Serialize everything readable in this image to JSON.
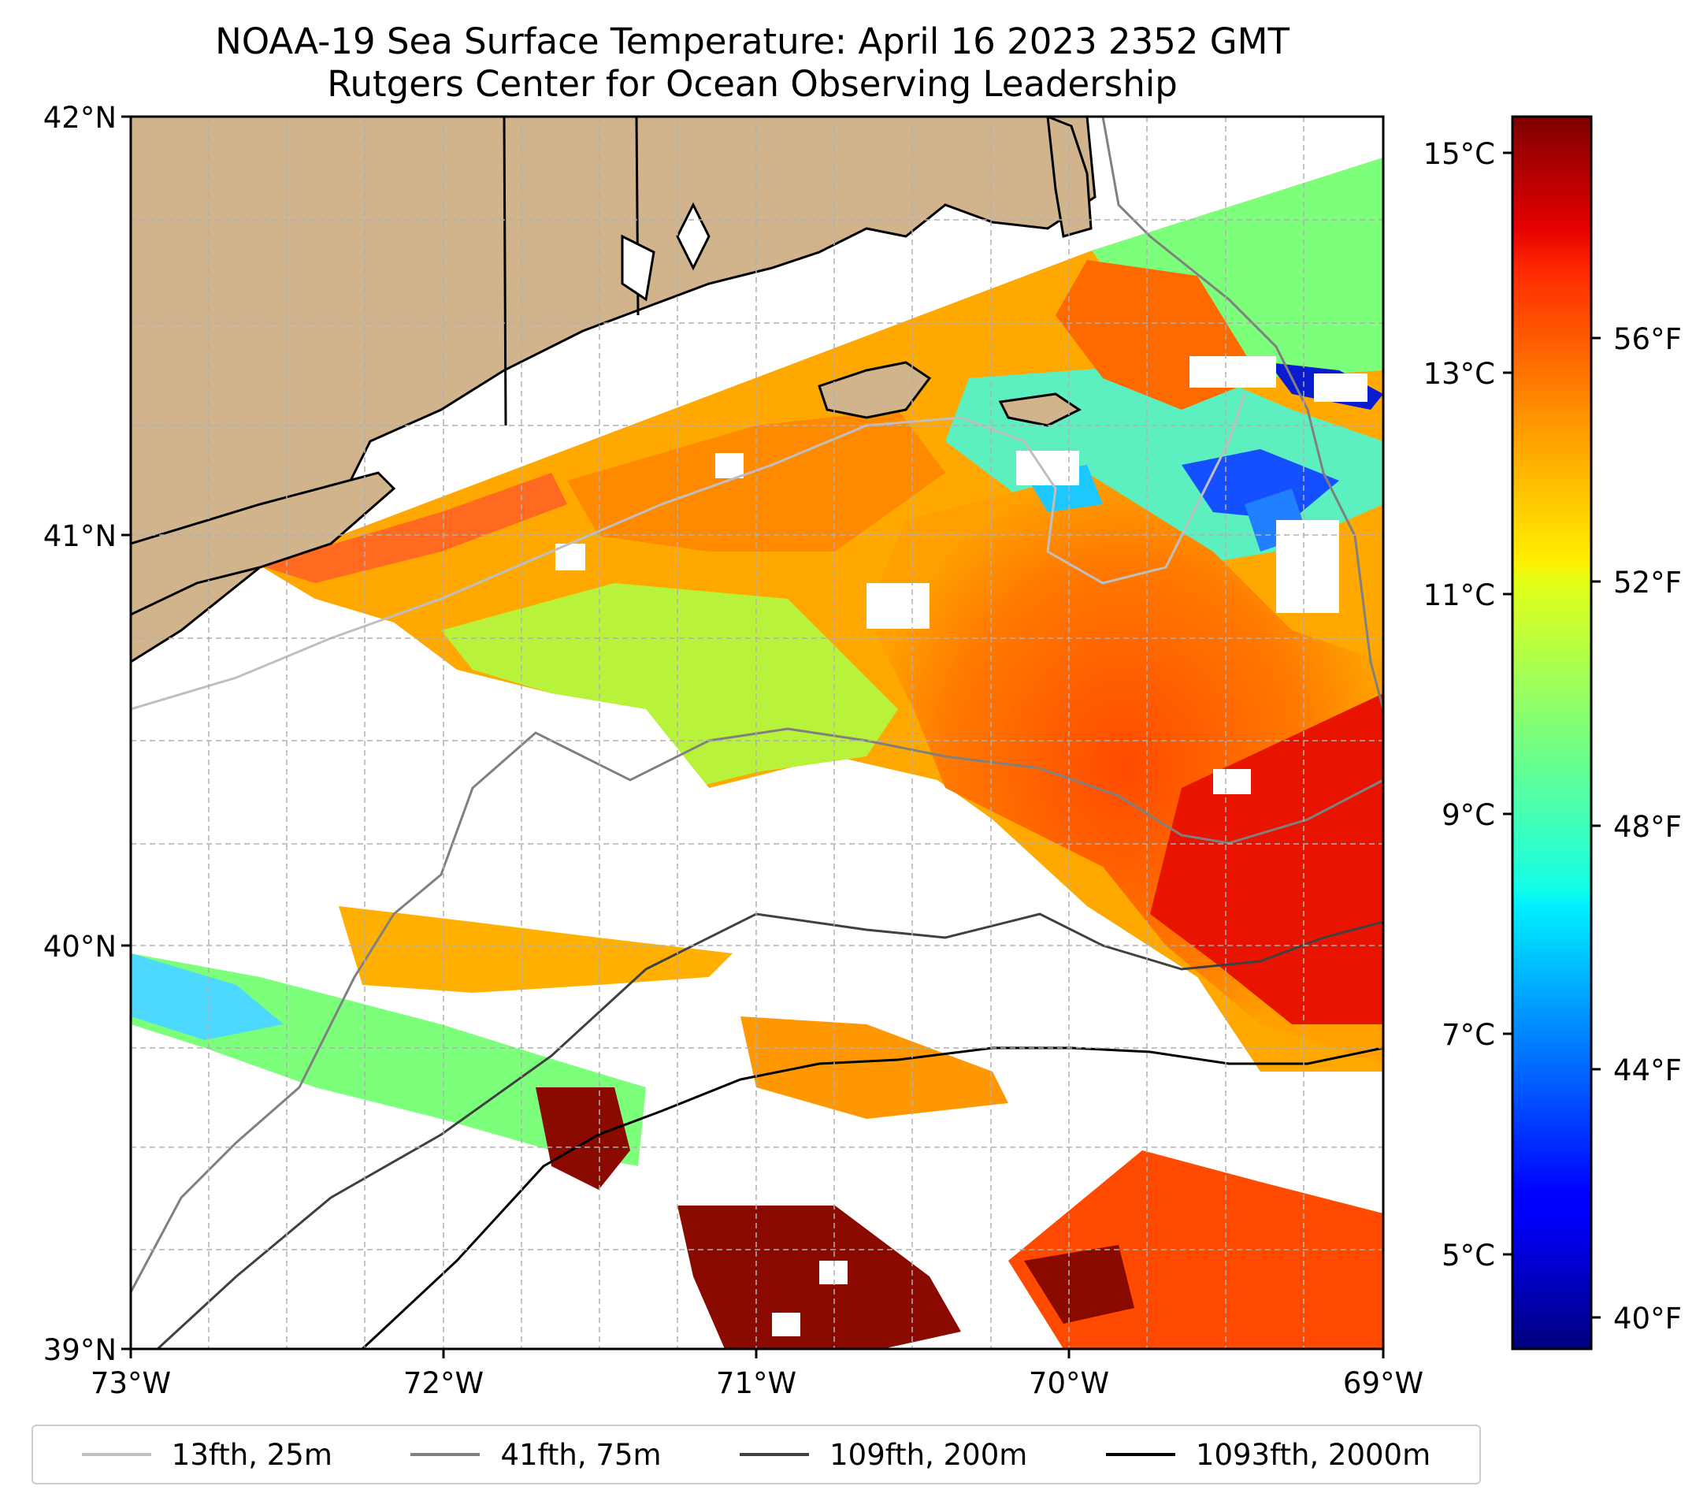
{
  "title": {
    "line1": "NOAA-19 Sea Surface Temperature: April 16 2023 2352 GMT",
    "line2": "Rutgers Center for Ocean Observing Leadership"
  },
  "axes": {
    "lat_ticks": [
      "42°N",
      "41°N",
      "40°N",
      "39°N"
    ],
    "lon_ticks": [
      "73°W",
      "72°W",
      "71°W",
      "70°W",
      "69°W"
    ],
    "lat_range": [
      39,
      42
    ],
    "lon_range": [
      -73,
      -69
    ]
  },
  "colorbar": {
    "celsius_ticks": [
      "15°C",
      "13°C",
      "11°C",
      "9°C",
      "7°C",
      "5°C"
    ],
    "fahrenheit_ticks": [
      "56°F",
      "52°F",
      "48°F",
      "44°F",
      "40°F"
    ],
    "colormap": "jet",
    "range_celsius": [
      4.1,
      15.4
    ]
  },
  "legend": [
    {
      "label": "13fth, 25m",
      "color": "#bfbfbf"
    },
    {
      "label": "41fth, 75m",
      "color": "#808080"
    },
    {
      "label": "109fth, 200m",
      "color": "#404040"
    },
    {
      "label": "1093fth, 2000m",
      "color": "#000000"
    }
  ],
  "colors": {
    "land": "#d2b48c",
    "frame": "#000000",
    "grid": "#b0b0b0"
  }
}
